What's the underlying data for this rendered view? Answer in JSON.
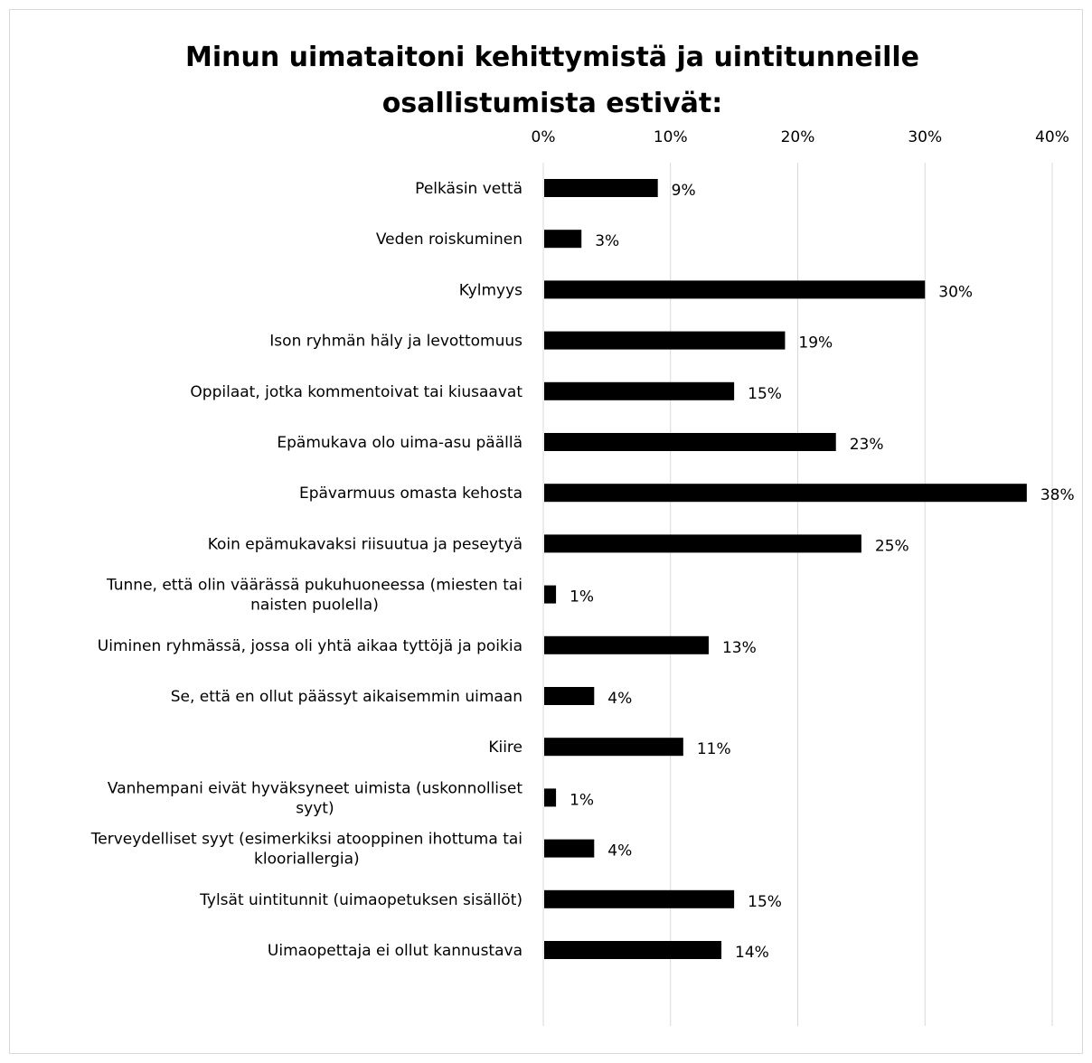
{
  "chart_data": {
    "type": "bar",
    "orientation": "horizontal",
    "title_lines": [
      "Minun uimataitoni kehittymistä ja uintitunneille",
      "osallistumista estivät:"
    ],
    "xlim": [
      0,
      40
    ],
    "x_ticks": [
      0,
      10,
      20,
      30,
      40
    ],
    "x_tick_labels": [
      "0%",
      "10%",
      "20%",
      "30%",
      "40%"
    ],
    "x_axis_position": "top",
    "grid": true,
    "bar_color": "#000000",
    "categories": [
      [
        "Pelkäsin vettä"
      ],
      [
        "Veden roiskuminen"
      ],
      [
        "Kylmyys"
      ],
      [
        "Ison ryhmän häly ja levottomuus"
      ],
      [
        "Oppilaat, jotka kommentoivat tai kiusaavat"
      ],
      [
        "Epämukava olo uima-asu päällä"
      ],
      [
        "Epävarmuus omasta kehosta"
      ],
      [
        "Koin epämukavaksi riisuutua ja peseytyä"
      ],
      [
        "Tunne, että olin väärässä pukuhuoneessa (miesten tai",
        "naisten puolella)"
      ],
      [
        "Uiminen ryhmässä, jossa oli yhtä aikaa tyttöjä ja poikia"
      ],
      [
        "Se, että en ollut päässyt aikaisemmin uimaan"
      ],
      [
        "Kiire"
      ],
      [
        "Vanhempani eivät hyväksyneet uimista (uskonnolliset",
        "syyt)"
      ],
      [
        "Terveydelliset syyt (esimerkiksi atooppinen ihottuma tai",
        "klooriallergia)"
      ],
      [
        "Tylsät uintitunnit (uimaopetuksen sisällöt)"
      ],
      [
        "Uimaopettaja ei ollut kannustava"
      ]
    ],
    "values": [
      9,
      3,
      30,
      19,
      15,
      23,
      38,
      25,
      1,
      13,
      4,
      11,
      1,
      4,
      15,
      14
    ],
    "data_labels": [
      "9%",
      "3%",
      "30%",
      "19%",
      "15%",
      "23%",
      "38%",
      "25%",
      "1%",
      "13%",
      "4%",
      "11%",
      "1%",
      "4%",
      "15%",
      "14%"
    ]
  }
}
